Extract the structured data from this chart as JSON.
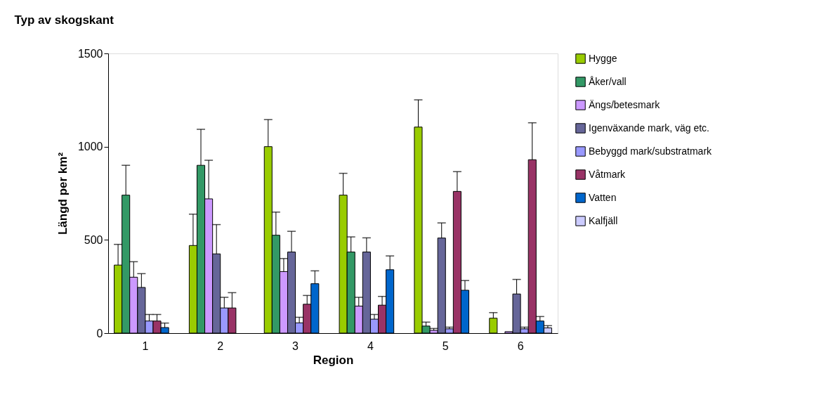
{
  "chart_data": {
    "type": "bar",
    "title": "Typ av skogskant",
    "xlabel": "Region",
    "ylabel": "Längd per km²",
    "categories": [
      "1",
      "2",
      "3",
      "4",
      "5",
      "6"
    ],
    "ylim": [
      0,
      1500
    ],
    "yticks": [
      0,
      500,
      1000,
      1500
    ],
    "grid": false,
    "legend": "right",
    "series": [
      {
        "name": "Hygge",
        "color": "#99cc00",
        "values": [
          365,
          470,
          1000,
          740,
          1105,
          80
        ],
        "errors": [
          [
            365,
            476
          ],
          [
            470,
            638
          ],
          [
            1000,
            1145
          ],
          [
            740,
            857
          ],
          [
            1105,
            1251
          ],
          [
            80,
            110
          ]
        ]
      },
      {
        "name": "Åker/vall",
        "color": "#339966",
        "values": [
          740,
          900,
          525,
          435,
          38,
          null
        ],
        "errors": [
          [
            740,
            900
          ],
          [
            900,
            1093
          ],
          [
            525,
            649
          ],
          [
            435,
            516
          ],
          [
            38,
            59
          ],
          null
        ]
      },
      {
        "name": "Ängs/betesmark",
        "color": "#cc99ff",
        "values": [
          300,
          720,
          330,
          145,
          15,
          8
        ],
        "errors": [
          [
            300,
            383
          ],
          [
            720,
            927
          ],
          [
            330,
            400
          ],
          [
            145,
            192
          ],
          [
            15,
            25
          ],
          null
        ]
      },
      {
        "name": "Igenväxande mark, väg etc.",
        "color": "#666699",
        "values": [
          245,
          425,
          435,
          435,
          510,
          210
        ],
        "errors": [
          [
            245,
            319
          ],
          [
            425,
            582
          ],
          [
            435,
            546
          ],
          [
            435,
            511
          ],
          [
            510,
            591
          ],
          [
            210,
            288
          ]
        ]
      },
      {
        "name": "Bebyggd mark/substratmark",
        "color": "#9999ff",
        "values": [
          65,
          135,
          55,
          75,
          23,
          23
        ],
        "errors": [
          [
            65,
            100
          ],
          [
            135,
            192
          ],
          [
            55,
            85
          ],
          [
            75,
            100
          ],
          [
            23,
            32
          ],
          [
            23,
            32
          ]
        ]
      },
      {
        "name": "Våtmark",
        "color": "#993366",
        "values": [
          65,
          135,
          155,
          150,
          760,
          930
        ],
        "errors": [
          [
            65,
            100
          ],
          [
            135,
            217
          ],
          [
            155,
            202
          ],
          [
            150,
            197
          ],
          [
            760,
            866
          ],
          [
            930,
            1128
          ]
        ]
      },
      {
        "name": "Vatten",
        "color": "#0066cc",
        "values": [
          30,
          null,
          265,
          340,
          230,
          65
        ],
        "errors": [
          [
            30,
            54
          ],
          null,
          [
            265,
            334
          ],
          [
            340,
            414
          ],
          [
            230,
            282
          ],
          [
            65,
            89
          ]
        ]
      },
      {
        "name": "Kalfjäll",
        "color": "#ccccff",
        "values": [
          null,
          null,
          null,
          null,
          null,
          28
        ],
        "errors": [
          null,
          null,
          null,
          null,
          null,
          [
            28,
            40
          ]
        ]
      }
    ]
  }
}
